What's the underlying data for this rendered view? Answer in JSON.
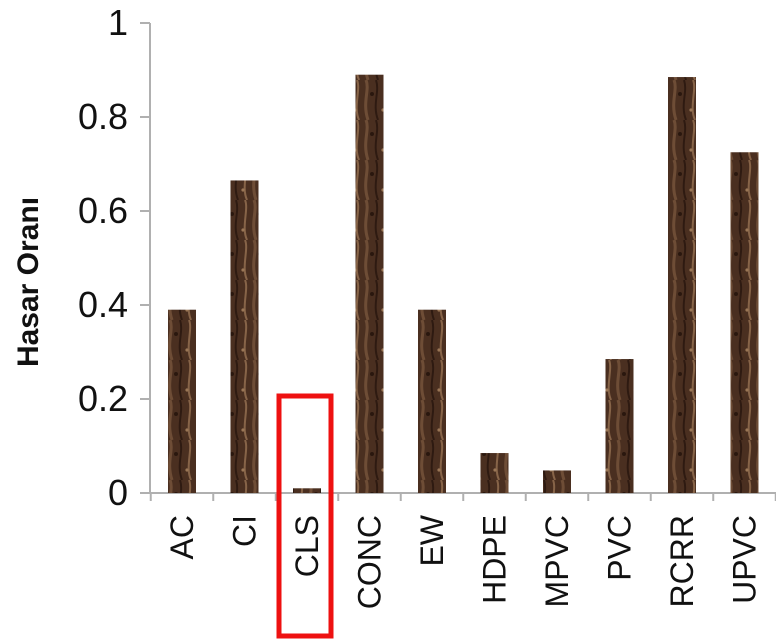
{
  "chart_data": {
    "type": "bar",
    "title": "",
    "xlabel": "",
    "ylabel": "Hasar Oranı",
    "categories": [
      "AC",
      "CI",
      "CLS",
      "CONC",
      "EW",
      "HDPE",
      "MPVC",
      "PVC",
      "RCRR",
      "UPVC"
    ],
    "values": [
      0.39,
      0.665,
      0.01,
      0.89,
      0.39,
      0.085,
      0.048,
      0.285,
      0.885,
      0.725
    ],
    "ylim": [
      0,
      1
    ],
    "yticks": [
      "0",
      "0.2",
      "0.4",
      "0.6",
      "0.8",
      "1"
    ],
    "ytick_values": [
      0,
      0.2,
      0.4,
      0.6,
      0.8,
      1
    ],
    "grid": false,
    "legend": "none",
    "highlight_category": "CLS",
    "colors": {
      "bar_dark": "#3a2418",
      "bar_mid": "#6b4a33",
      "bar_light": "#8c6a4e",
      "axis": "#b0b0b0",
      "highlight": "#ee1111"
    }
  }
}
